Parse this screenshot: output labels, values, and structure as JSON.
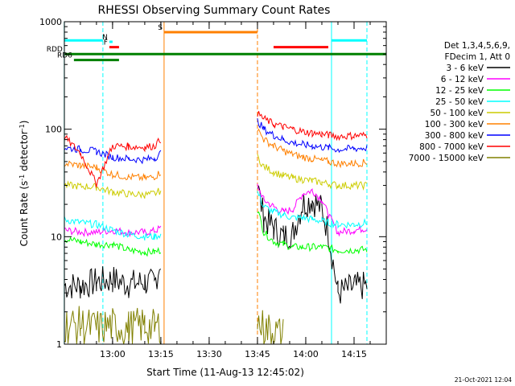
{
  "chart_data": {
    "type": "line",
    "title": "RHESSI Observing Summary Count Rates",
    "xlabel": "Start Time (11-Aug-13 12:45:02)",
    "ylabel_parts": [
      "Count Rate (s",
      "-1",
      " detector",
      "-1",
      ")"
    ],
    "yscale": "log",
    "ylim": [
      1,
      1000
    ],
    "xlim": [
      "12:45:02",
      "14:25:00"
    ],
    "yticks": [
      {
        "value": 1,
        "label": "1"
      },
      {
        "value": 10,
        "label": "10"
      },
      {
        "value": 100,
        "label": "100"
      },
      {
        "value": 1000,
        "label": "1000"
      }
    ],
    "xticks": [
      {
        "value": "13:00",
        "label": "13:00"
      },
      {
        "value": "13:15",
        "label": "13:15"
      },
      {
        "value": "13:30",
        "label": "13:30"
      },
      {
        "value": "13:45",
        "label": "13:45"
      },
      {
        "value": "14:00",
        "label": "14:00"
      },
      {
        "value": "14:15",
        "label": "14:15"
      }
    ],
    "legend_placement": "right",
    "legend_header": [
      "Det 1,3,4,5,6,9,",
      "FDecim 1, Att 0"
    ],
    "series": [
      {
        "name": "3 - 6 keV",
        "color": "#000000",
        "segments": [
          {
            "t": [
              "12:45",
              "12:50",
              "12:55",
              "13:00",
              "13:05",
              "13:10",
              "13:13",
              "13:15"
            ],
            "y": [
              3.5,
              3.5,
              3.8,
              4,
              3.6,
              3.8,
              3.6,
              6
            ]
          },
          {
            "t": [
              "13:45",
              "13:47",
              "13:50",
              "13:53",
              "13:56",
              "13:59",
              "14:02",
              "14:05",
              "14:07",
              "14:10",
              "14:15",
              "14:19"
            ],
            "y": [
              30,
              15,
              12,
              10,
              11,
              20,
              22,
              18,
              11,
              3,
              3.4,
              3.5
            ]
          }
        ]
      },
      {
        "name": "6 - 12 keV",
        "color": "#ff00ff",
        "segments": [
          {
            "t": [
              "12:45",
              "12:50",
              "12:55",
              "13:00",
              "13:05",
              "13:10",
              "13:13",
              "13:15"
            ],
            "y": [
              11.5,
              11,
              11,
              11.5,
              11,
              11,
              11.3,
              12
            ]
          },
          {
            "t": [
              "13:45",
              "13:47",
              "13:50",
              "13:53",
              "13:56",
              "13:59",
              "14:02",
              "14:05",
              "14:07",
              "14:10",
              "14:15",
              "14:19"
            ],
            "y": [
              30,
              22,
              19,
              17,
              18,
              25,
              27,
              22,
              16,
              11,
              11.5,
              12
            ]
          }
        ]
      },
      {
        "name": "12 - 25 keV",
        "color": "#00ff00",
        "segments": [
          {
            "t": [
              "12:45",
              "12:50",
              "12:55",
              "13:00",
              "13:05",
              "13:10",
              "13:13",
              "13:15"
            ],
            "y": [
              9.5,
              9,
              8.5,
              8.5,
              7.5,
              7.2,
              7.2,
              7.5
            ]
          },
          {
            "t": [
              "13:45",
              "13:47",
              "13:50",
              "13:53",
              "13:56",
              "13:59",
              "14:02",
              "14:05",
              "14:07",
              "14:10",
              "14:15",
              "14:19"
            ],
            "y": [
              18,
              11,
              9,
              8.5,
              8,
              8,
              8,
              8,
              7.8,
              7.5,
              7.5,
              7.6
            ]
          }
        ]
      },
      {
        "name": "25 - 50 keV",
        "color": "#00ffff",
        "segments": [
          {
            "t": [
              "12:45",
              "12:50",
              "12:55",
              "13:00",
              "13:05",
              "13:10",
              "13:13",
              "13:15"
            ],
            "y": [
              14.5,
              13.5,
              13,
              11.5,
              10.5,
              10,
              10,
              10.5
            ]
          },
          {
            "t": [
              "13:45",
              "13:47",
              "13:50",
              "13:53",
              "13:56",
              "13:59",
              "14:02",
              "14:05",
              "14:07",
              "14:10",
              "14:15",
              "14:19"
            ],
            "y": [
              26,
              19,
              17,
              16,
              15,
              15,
              14.5,
              14,
              13.5,
              13,
              13,
              13.5
            ]
          }
        ]
      },
      {
        "name": "50 - 100 keV",
        "color": "#cccc00",
        "segments": [
          {
            "t": [
              "12:45",
              "12:50",
              "12:55",
              "13:00",
              "13:05",
              "13:10",
              "13:13",
              "13:15"
            ],
            "y": [
              30,
              29.5,
              29,
              26,
              25,
              24.5,
              25,
              27
            ]
          },
          {
            "t": [
              "13:45",
              "13:47",
              "13:50",
              "13:53",
              "13:56",
              "13:59",
              "14:02",
              "14:05",
              "14:07",
              "14:10",
              "14:15",
              "14:19"
            ],
            "y": [
              55,
              45,
              40,
              37,
              35,
              34,
              33,
              32,
              31,
              30,
              30,
              30
            ]
          }
        ]
      },
      {
        "name": "100 - 300 keV",
        "color": "#ff8000",
        "segments": [
          {
            "t": [
              "12:45",
              "12:50",
              "12:55",
              "13:00",
              "13:05",
              "13:10",
              "13:13",
              "13:15"
            ],
            "y": [
              48,
              46,
              44,
              38,
              36,
              35,
              36,
              40
            ]
          },
          {
            "t": [
              "13:45",
              "13:47",
              "13:50",
              "13:53",
              "13:56",
              "13:59",
              "14:02",
              "14:05",
              "14:07",
              "14:10",
              "14:15",
              "14:19"
            ],
            "y": [
              100,
              80,
              70,
              63,
              58,
              55,
              53,
              51,
              50,
              48,
              48,
              49
            ]
          }
        ]
      },
      {
        "name": "300 - 800 keV",
        "color": "#0000ff",
        "segments": [
          {
            "t": [
              "12:45",
              "12:50",
              "12:55",
              "13:00",
              "13:05",
              "13:10",
              "13:13",
              "13:15"
            ],
            "y": [
              67,
              65,
              62,
              55,
              53,
              52,
              54,
              60
            ]
          },
          {
            "t": [
              "13:45",
              "13:47",
              "13:50",
              "13:53",
              "13:56",
              "13:59",
              "14:02",
              "14:05",
              "14:07",
              "14:10",
              "14:15",
              "14:19"
            ],
            "y": [
              120,
              100,
              88,
              80,
              75,
              72,
              70,
              68,
              67,
              65,
              66,
              67
            ]
          }
        ]
      },
      {
        "name": "800 - 7000 keV",
        "color": "#ff0000",
        "segments": [
          {
            "t": [
              "12:45",
              "12:50",
              "12:55",
              "13:00",
              "13:05",
              "13:10",
              "13:13",
              "13:15"
            ],
            "y": [
              85,
              60,
              31,
              70,
              69,
              68,
              70,
              80
            ]
          },
          {
            "t": [
              "13:45",
              "13:47",
              "13:50",
              "13:53",
              "13:56",
              "13:59",
              "14:02",
              "14:05",
              "14:07",
              "14:10",
              "14:15",
              "14:19"
            ],
            "y": [
              140,
              125,
              112,
              105,
              100,
              95,
              92,
              90,
              88,
              86,
              87,
              88
            ]
          }
        ]
      },
      {
        "name": "7000 - 15000 keV",
        "color": "#808000",
        "segments": [
          {
            "t": [
              "12:45",
              "12:50",
              "12:55",
              "13:00",
              "13:05",
              "13:10",
              "13:13",
              "13:15"
            ],
            "y": [
              1.5,
              1.5,
              1.4,
              1.5,
              1.4,
              1.5,
              1.4,
              1.5
            ]
          },
          {
            "t": [
              "13:45",
              "13:47",
              "13:50",
              "13:53"
            ],
            "y": [
              1.6,
              1.4,
              1.3,
              1.2
            ]
          }
        ]
      }
    ],
    "annotations": [
      {
        "label": "N",
        "color": "#00ffff",
        "t_start": "12:59",
        "t_end": "13:00",
        "level": 650
      },
      {
        "label": "F",
        "color": "#ff0000",
        "t_start": "12:59",
        "t_end": "13:02",
        "level": 580
      },
      {
        "label": "S",
        "color": "#ff8000",
        "t_start": "13:16",
        "t_end": "13:45",
        "level": 800
      },
      {
        "label": "",
        "color": "#ff0000",
        "t_start": "13:50",
        "t_end": "14:07",
        "level": 580
      },
      {
        "label": "",
        "color": "#00ffff",
        "t_start": "12:45",
        "t_end": "12:57",
        "level": 670
      },
      {
        "label": "",
        "color": "#00ffff",
        "t_start": "14:08",
        "t_end": "14:19",
        "level": 670
      },
      {
        "label": "RDD",
        "color": "#008000",
        "t_start": "12:45",
        "t_end": "14:25",
        "level": 500
      },
      {
        "label": "RD6",
        "color": "#008000",
        "t_start": "12:48",
        "t_end": "13:02",
        "level": 440
      }
    ],
    "vlines": [
      {
        "t": "12:45",
        "color": "#00ffff",
        "style": "solid"
      },
      {
        "t": "12:57",
        "color": "#00ffff",
        "style": "dashed"
      },
      {
        "t": "13:16",
        "color": "#ff8000",
        "style": "solid"
      },
      {
        "t": "13:45",
        "color": "#ff8000",
        "style": "dashed"
      },
      {
        "t": "14:08",
        "color": "#00ffff",
        "style": "solid"
      },
      {
        "t": "14:19",
        "color": "#00ffff",
        "style": "dashed"
      }
    ],
    "footer_date": "21-Oct-2021 12:04"
  }
}
